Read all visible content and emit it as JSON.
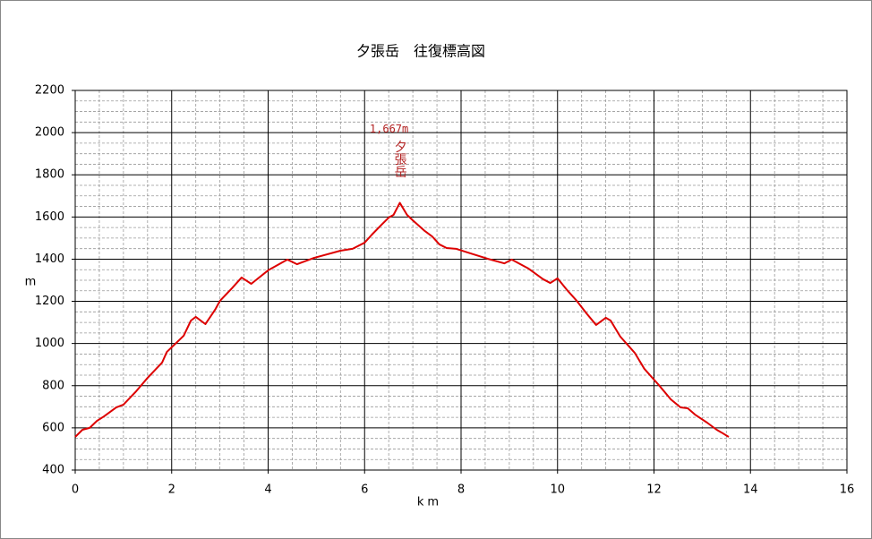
{
  "chart_data": {
    "type": "line",
    "title": "夕張岳　往復標高図",
    "x_label": "km",
    "y_label": "m",
    "annotation": {
      "label": "1,667m",
      "name": "夕張岳",
      "x": 6.73,
      "y": 1667,
      "color": "#b22222"
    },
    "x": [
      0,
      0.15,
      0.3,
      0.45,
      0.6,
      0.85,
      1.0,
      1.25,
      1.5,
      1.8,
      1.9,
      2.0,
      2.25,
      2.4,
      2.5,
      2.7,
      2.9,
      3.0,
      3.25,
      3.45,
      3.65,
      4.0,
      4.4,
      4.6,
      4.95,
      5.5,
      5.75,
      6.0,
      6.15,
      6.35,
      6.5,
      6.6,
      6.73,
      6.88,
      7.0,
      7.25,
      7.4,
      7.55,
      7.7,
      7.9,
      8.2,
      8.55,
      8.9,
      9.05,
      9.4,
      9.7,
      9.85,
      10.0,
      10.2,
      10.4,
      10.6,
      10.8,
      11.0,
      11.1,
      11.3,
      11.6,
      11.8,
      12.1,
      12.35,
      12.55,
      12.7,
      12.85,
      13.1,
      13.3,
      13.4,
      13.55
    ],
    "series": [
      {
        "color": "#dd0000",
        "values": [
          557,
          591,
          600,
          633,
          655,
          697,
          710,
          770,
          837,
          909,
          960,
          982,
          1037,
          1109,
          1126,
          1092,
          1160,
          1202,
          1262,
          1313,
          1283,
          1347,
          1398,
          1376,
          1406,
          1440,
          1449,
          1478,
          1516,
          1563,
          1597,
          1610,
          1667,
          1610,
          1584,
          1533,
          1508,
          1470,
          1453,
          1449,
          1427,
          1402,
          1380,
          1398,
          1355,
          1305,
          1287,
          1309,
          1253,
          1202,
          1143,
          1088,
          1122,
          1109,
          1033,
          956,
          880,
          803,
          735,
          697,
          693,
          663,
          625,
          591,
          578,
          557
        ]
      }
    ],
    "xlim": [
      0,
      16
    ],
    "xticks": [
      0,
      2,
      4,
      6,
      8,
      10,
      12,
      14,
      16
    ],
    "ylim": [
      400,
      2200
    ],
    "yticks": [
      400,
      600,
      800,
      1000,
      1200,
      1400,
      1600,
      1800,
      2000,
      2200
    ],
    "grid": true
  }
}
